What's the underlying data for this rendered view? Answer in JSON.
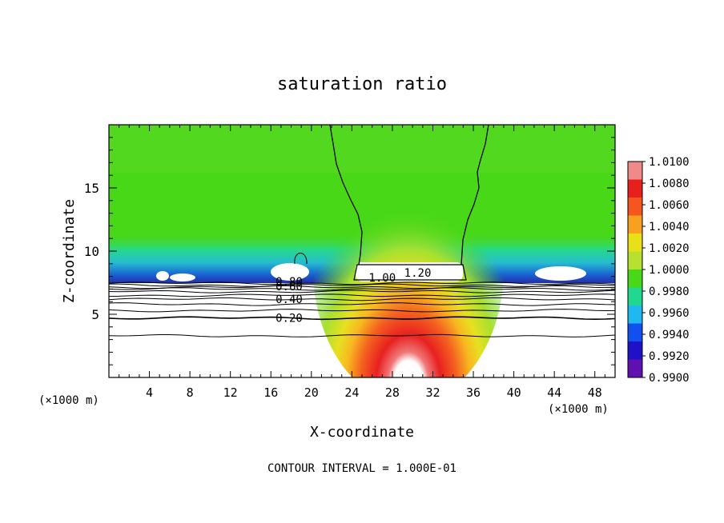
{
  "chart_data": {
    "type": "heatmap",
    "title": "saturation ratio",
    "xlabel": "X-coordinate",
    "ylabel": "Z-coordinate",
    "x_unit_label_left": "(×1000 m)",
    "x_unit_label_right": "(×1000 m)",
    "xlim": [
      0,
      50
    ],
    "ylim": [
      0,
      20
    ],
    "x_ticks": [
      4,
      8,
      12,
      16,
      20,
      24,
      28,
      32,
      36,
      40,
      44,
      48
    ],
    "y_ticks": [
      5,
      10,
      15
    ],
    "colorbar": {
      "ticks": [
        "1.0100",
        "1.0080",
        "1.0060",
        "1.0040",
        "1.0020",
        "1.0000",
        "0.9980",
        "0.9960",
        "0.9940",
        "0.9920",
        "0.9900"
      ],
      "colors": [
        "#f08a8a",
        "#e8201c",
        "#f4561e",
        "#f8a020",
        "#e8e018",
        "#b8e030",
        "#48d818",
        "#20d890",
        "#20b8f0",
        "#1050f0",
        "#2010c8",
        "#6010b0"
      ]
    },
    "contour_labels": [
      {
        "text": "1.20",
        "x": 30.5,
        "z": 8.3
      },
      {
        "text": "1.00",
        "x": 27.0,
        "z": 7.9
      },
      {
        "text": "0.80",
        "x": 17.8,
        "z": 7.6
      },
      {
        "text": "0.60",
        "x": 17.8,
        "z": 7.2
      },
      {
        "text": "0.40",
        "x": 17.8,
        "z": 6.2
      },
      {
        "text": "0.20",
        "x": 17.8,
        "z": 4.7
      }
    ],
    "footer": "CONTOUR INTERVAL = 1.000E-01"
  }
}
